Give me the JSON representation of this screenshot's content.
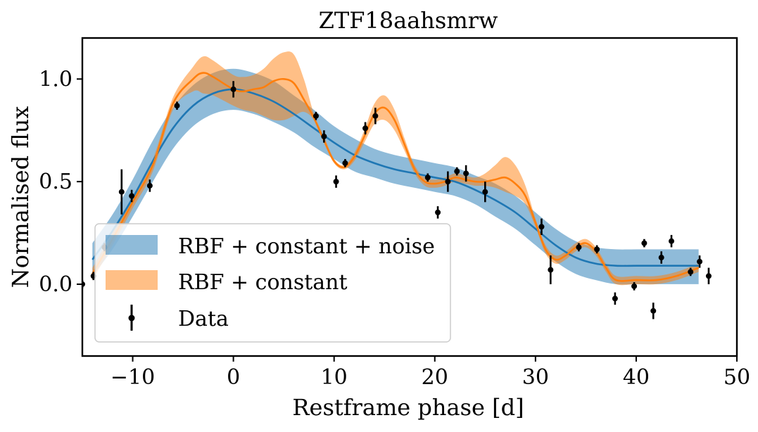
{
  "chart_data": {
    "type": "line",
    "title": "ZTF18aahsmrw",
    "xlabel": "Restframe phase [d]",
    "ylabel": "Normalised flux",
    "xlim": [
      -15,
      50
    ],
    "ylim": [
      -0.35,
      1.2
    ],
    "xticks": [
      -10,
      0,
      10,
      20,
      30,
      40,
      50
    ],
    "xtick_labels": [
      "−10",
      "0",
      "10",
      "20",
      "30",
      "40",
      "50"
    ],
    "yticks": [
      0.0,
      0.5,
      1.0
    ],
    "ytick_labels": [
      "0.0",
      "0.5",
      "1.0"
    ],
    "grid": false,
    "legend_position": "lower-left",
    "colors": {
      "blue": "#1f77b4",
      "orange": "#ff7f0e",
      "data": "#000000"
    },
    "series": [
      {
        "name": "RBF + constant + noise",
        "style": "line-with-band",
        "color": "#1f77b4",
        "x": [
          -14,
          -12,
          -10,
          -8,
          -6,
          -4,
          -2,
          0,
          2,
          4,
          6,
          8,
          10,
          12,
          14,
          16,
          18,
          20,
          22,
          24,
          26,
          28,
          30,
          32,
          34,
          36,
          38,
          40,
          42,
          44,
          46.2
        ],
        "y": [
          0.12,
          0.26,
          0.42,
          0.6,
          0.76,
          0.87,
          0.93,
          0.95,
          0.93,
          0.89,
          0.83,
          0.76,
          0.69,
          0.63,
          0.59,
          0.56,
          0.54,
          0.52,
          0.5,
          0.46,
          0.41,
          0.35,
          0.27,
          0.19,
          0.13,
          0.1,
          0.09,
          0.09,
          0.09,
          0.09,
          0.09
        ],
        "lower": [
          0.04,
          0.17,
          0.33,
          0.5,
          0.66,
          0.77,
          0.83,
          0.85,
          0.83,
          0.79,
          0.74,
          0.67,
          0.61,
          0.55,
          0.52,
          0.49,
          0.47,
          0.45,
          0.43,
          0.39,
          0.33,
          0.27,
          0.19,
          0.11,
          0.05,
          0.02,
          0.0,
          0.0,
          0.0,
          0.0,
          0.0
        ],
        "upper": [
          0.2,
          0.34,
          0.51,
          0.7,
          0.86,
          0.97,
          1.03,
          1.05,
          1.03,
          0.99,
          0.92,
          0.85,
          0.77,
          0.71,
          0.66,
          0.63,
          0.61,
          0.59,
          0.57,
          0.53,
          0.49,
          0.43,
          0.35,
          0.27,
          0.21,
          0.18,
          0.17,
          0.17,
          0.17,
          0.17,
          0.17
        ]
      },
      {
        "name": "RBF + constant",
        "style": "line-with-band",
        "color": "#ff7f0e",
        "x": [
          -14,
          -12,
          -10,
          -8,
          -6,
          -4,
          -3,
          -2,
          0,
          1,
          2,
          3,
          4,
          5,
          6,
          7,
          8,
          9,
          10,
          11,
          12,
          13,
          14,
          15,
          16,
          17,
          18,
          19,
          20,
          21,
          22,
          23,
          24,
          25,
          26,
          27,
          28,
          29,
          30,
          31,
          32,
          33,
          34,
          35,
          36,
          37,
          38,
          40,
          42,
          44,
          46.2
        ],
        "y": [
          0.05,
          0.22,
          0.4,
          0.58,
          0.88,
          1.0,
          1.03,
          1.01,
          0.95,
          0.94,
          0.95,
          0.96,
          0.99,
          1.0,
          0.98,
          0.9,
          0.81,
          0.7,
          0.6,
          0.57,
          0.62,
          0.72,
          0.83,
          0.86,
          0.8,
          0.68,
          0.56,
          0.5,
          0.49,
          0.5,
          0.52,
          0.51,
          0.5,
          0.5,
          0.51,
          0.52,
          0.49,
          0.43,
          0.3,
          0.17,
          0.12,
          0.14,
          0.18,
          0.2,
          0.16,
          0.08,
          0.02,
          0.02,
          0.02,
          0.04,
          0.08
        ],
        "lower": [
          0.02,
          0.19,
          0.37,
          0.55,
          0.85,
          0.94,
          0.93,
          0.92,
          0.87,
          0.85,
          0.84,
          0.82,
          0.8,
          0.8,
          0.82,
          0.84,
          0.8,
          0.69,
          0.59,
          0.56,
          0.6,
          0.69,
          0.78,
          0.8,
          0.75,
          0.65,
          0.54,
          0.48,
          0.47,
          0.48,
          0.5,
          0.49,
          0.48,
          0.48,
          0.47,
          0.45,
          0.43,
          0.39,
          0.28,
          0.15,
          0.1,
          0.12,
          0.16,
          0.18,
          0.14,
          0.06,
          0.0,
          0.0,
          0.0,
          0.02,
          0.06
        ],
        "upper": [
          0.08,
          0.25,
          0.43,
          0.61,
          0.91,
          1.06,
          1.11,
          1.09,
          1.02,
          1.01,
          1.02,
          1.05,
          1.1,
          1.13,
          1.12,
          1.0,
          0.83,
          0.72,
          0.61,
          0.58,
          0.64,
          0.75,
          0.88,
          0.92,
          0.85,
          0.71,
          0.58,
          0.52,
          0.51,
          0.52,
          0.54,
          0.53,
          0.52,
          0.54,
          0.58,
          0.62,
          0.58,
          0.48,
          0.32,
          0.19,
          0.14,
          0.16,
          0.2,
          0.22,
          0.18,
          0.1,
          0.04,
          0.04,
          0.04,
          0.06,
          0.1
        ]
      },
      {
        "name": "Data",
        "style": "errorbar",
        "color": "#000000",
        "points": [
          {
            "x": -15.0,
            "y": 0.0,
            "err": 0.02
          },
          {
            "x": -13.9,
            "y": 0.04,
            "err": 0.02
          },
          {
            "x": -12.8,
            "y": 0.18,
            "err": 0.02
          },
          {
            "x": -11.1,
            "y": 0.45,
            "err": 0.11
          },
          {
            "x": -10.1,
            "y": 0.43,
            "err": 0.03
          },
          {
            "x": -8.3,
            "y": 0.48,
            "err": 0.03
          },
          {
            "x": -5.6,
            "y": 0.87,
            "err": 0.02
          },
          {
            "x": 0.0,
            "y": 0.95,
            "err": 0.04
          },
          {
            "x": 8.2,
            "y": 0.82,
            "err": 0.02
          },
          {
            "x": 9.0,
            "y": 0.72,
            "err": 0.03
          },
          {
            "x": 10.2,
            "y": 0.5,
            "err": 0.03
          },
          {
            "x": 11.1,
            "y": 0.59,
            "err": 0.02
          },
          {
            "x": 13.1,
            "y": 0.76,
            "err": 0.03
          },
          {
            "x": 14.1,
            "y": 0.82,
            "err": 0.04
          },
          {
            "x": 19.3,
            "y": 0.52,
            "err": 0.02
          },
          {
            "x": 20.3,
            "y": 0.35,
            "err": 0.03
          },
          {
            "x": 21.3,
            "y": 0.5,
            "err": 0.05
          },
          {
            "x": 22.2,
            "y": 0.55,
            "err": 0.02
          },
          {
            "x": 23.1,
            "y": 0.54,
            "err": 0.04
          },
          {
            "x": 25.0,
            "y": 0.45,
            "err": 0.05
          },
          {
            "x": 30.6,
            "y": 0.28,
            "err": 0.04
          },
          {
            "x": 31.5,
            "y": 0.07,
            "err": 0.07
          },
          {
            "x": 34.3,
            "y": 0.18,
            "err": 0.02
          },
          {
            "x": 36.1,
            "y": 0.17,
            "err": 0.02
          },
          {
            "x": 37.9,
            "y": -0.07,
            "err": 0.03
          },
          {
            "x": 39.8,
            "y": -0.01,
            "err": 0.02
          },
          {
            "x": 40.8,
            "y": 0.2,
            "err": 0.02
          },
          {
            "x": 41.7,
            "y": -0.13,
            "err": 0.04
          },
          {
            "x": 42.5,
            "y": 0.13,
            "err": 0.03
          },
          {
            "x": 43.5,
            "y": 0.21,
            "err": 0.03
          },
          {
            "x": 45.4,
            "y": 0.06,
            "err": 0.02
          },
          {
            "x": 46.3,
            "y": 0.11,
            "err": 0.03
          },
          {
            "x": 47.2,
            "y": 0.04,
            "err": 0.04
          }
        ]
      }
    ],
    "legend": [
      {
        "label": "RBF + constant + noise",
        "swatch": "band",
        "color": "#1f77b4"
      },
      {
        "label": "RBF + constant",
        "swatch": "band",
        "color": "#ff7f0e"
      },
      {
        "label": "Data",
        "swatch": "errorbar",
        "color": "#000000"
      }
    ]
  }
}
